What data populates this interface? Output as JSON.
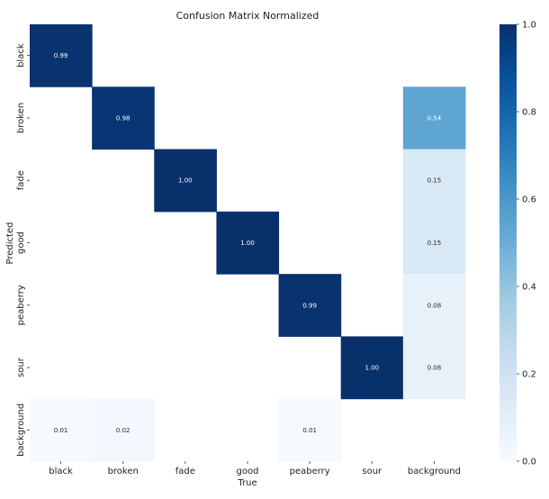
{
  "chart_data": {
    "type": "heatmap",
    "title": "Confusion Matrix Normalized",
    "xlabel": "True",
    "ylabel": "Predicted",
    "x_categories": [
      "black",
      "broken",
      "fade",
      "good",
      "peaberry",
      "sour",
      "background"
    ],
    "y_categories": [
      "black",
      "broken",
      "fade",
      "good",
      "peaberry",
      "sour",
      "background"
    ],
    "values": [
      [
        0.99,
        null,
        null,
        null,
        null,
        null,
        null
      ],
      [
        null,
        0.98,
        null,
        null,
        null,
        null,
        0.54
      ],
      [
        null,
        null,
        1.0,
        null,
        null,
        null,
        0.15
      ],
      [
        null,
        null,
        null,
        1.0,
        null,
        null,
        0.15
      ],
      [
        null,
        null,
        null,
        null,
        0.99,
        null,
        0.08
      ],
      [
        null,
        null,
        null,
        null,
        null,
        1.0,
        0.08
      ],
      [
        0.01,
        0.02,
        null,
        null,
        0.01,
        null,
        null
      ]
    ],
    "colormap": "Blues",
    "vmin": 0.0,
    "vmax": 1.0,
    "colorbar_ticks": [
      "0.0",
      "0.2",
      "0.4",
      "0.6",
      "0.8",
      "1.0"
    ]
  }
}
